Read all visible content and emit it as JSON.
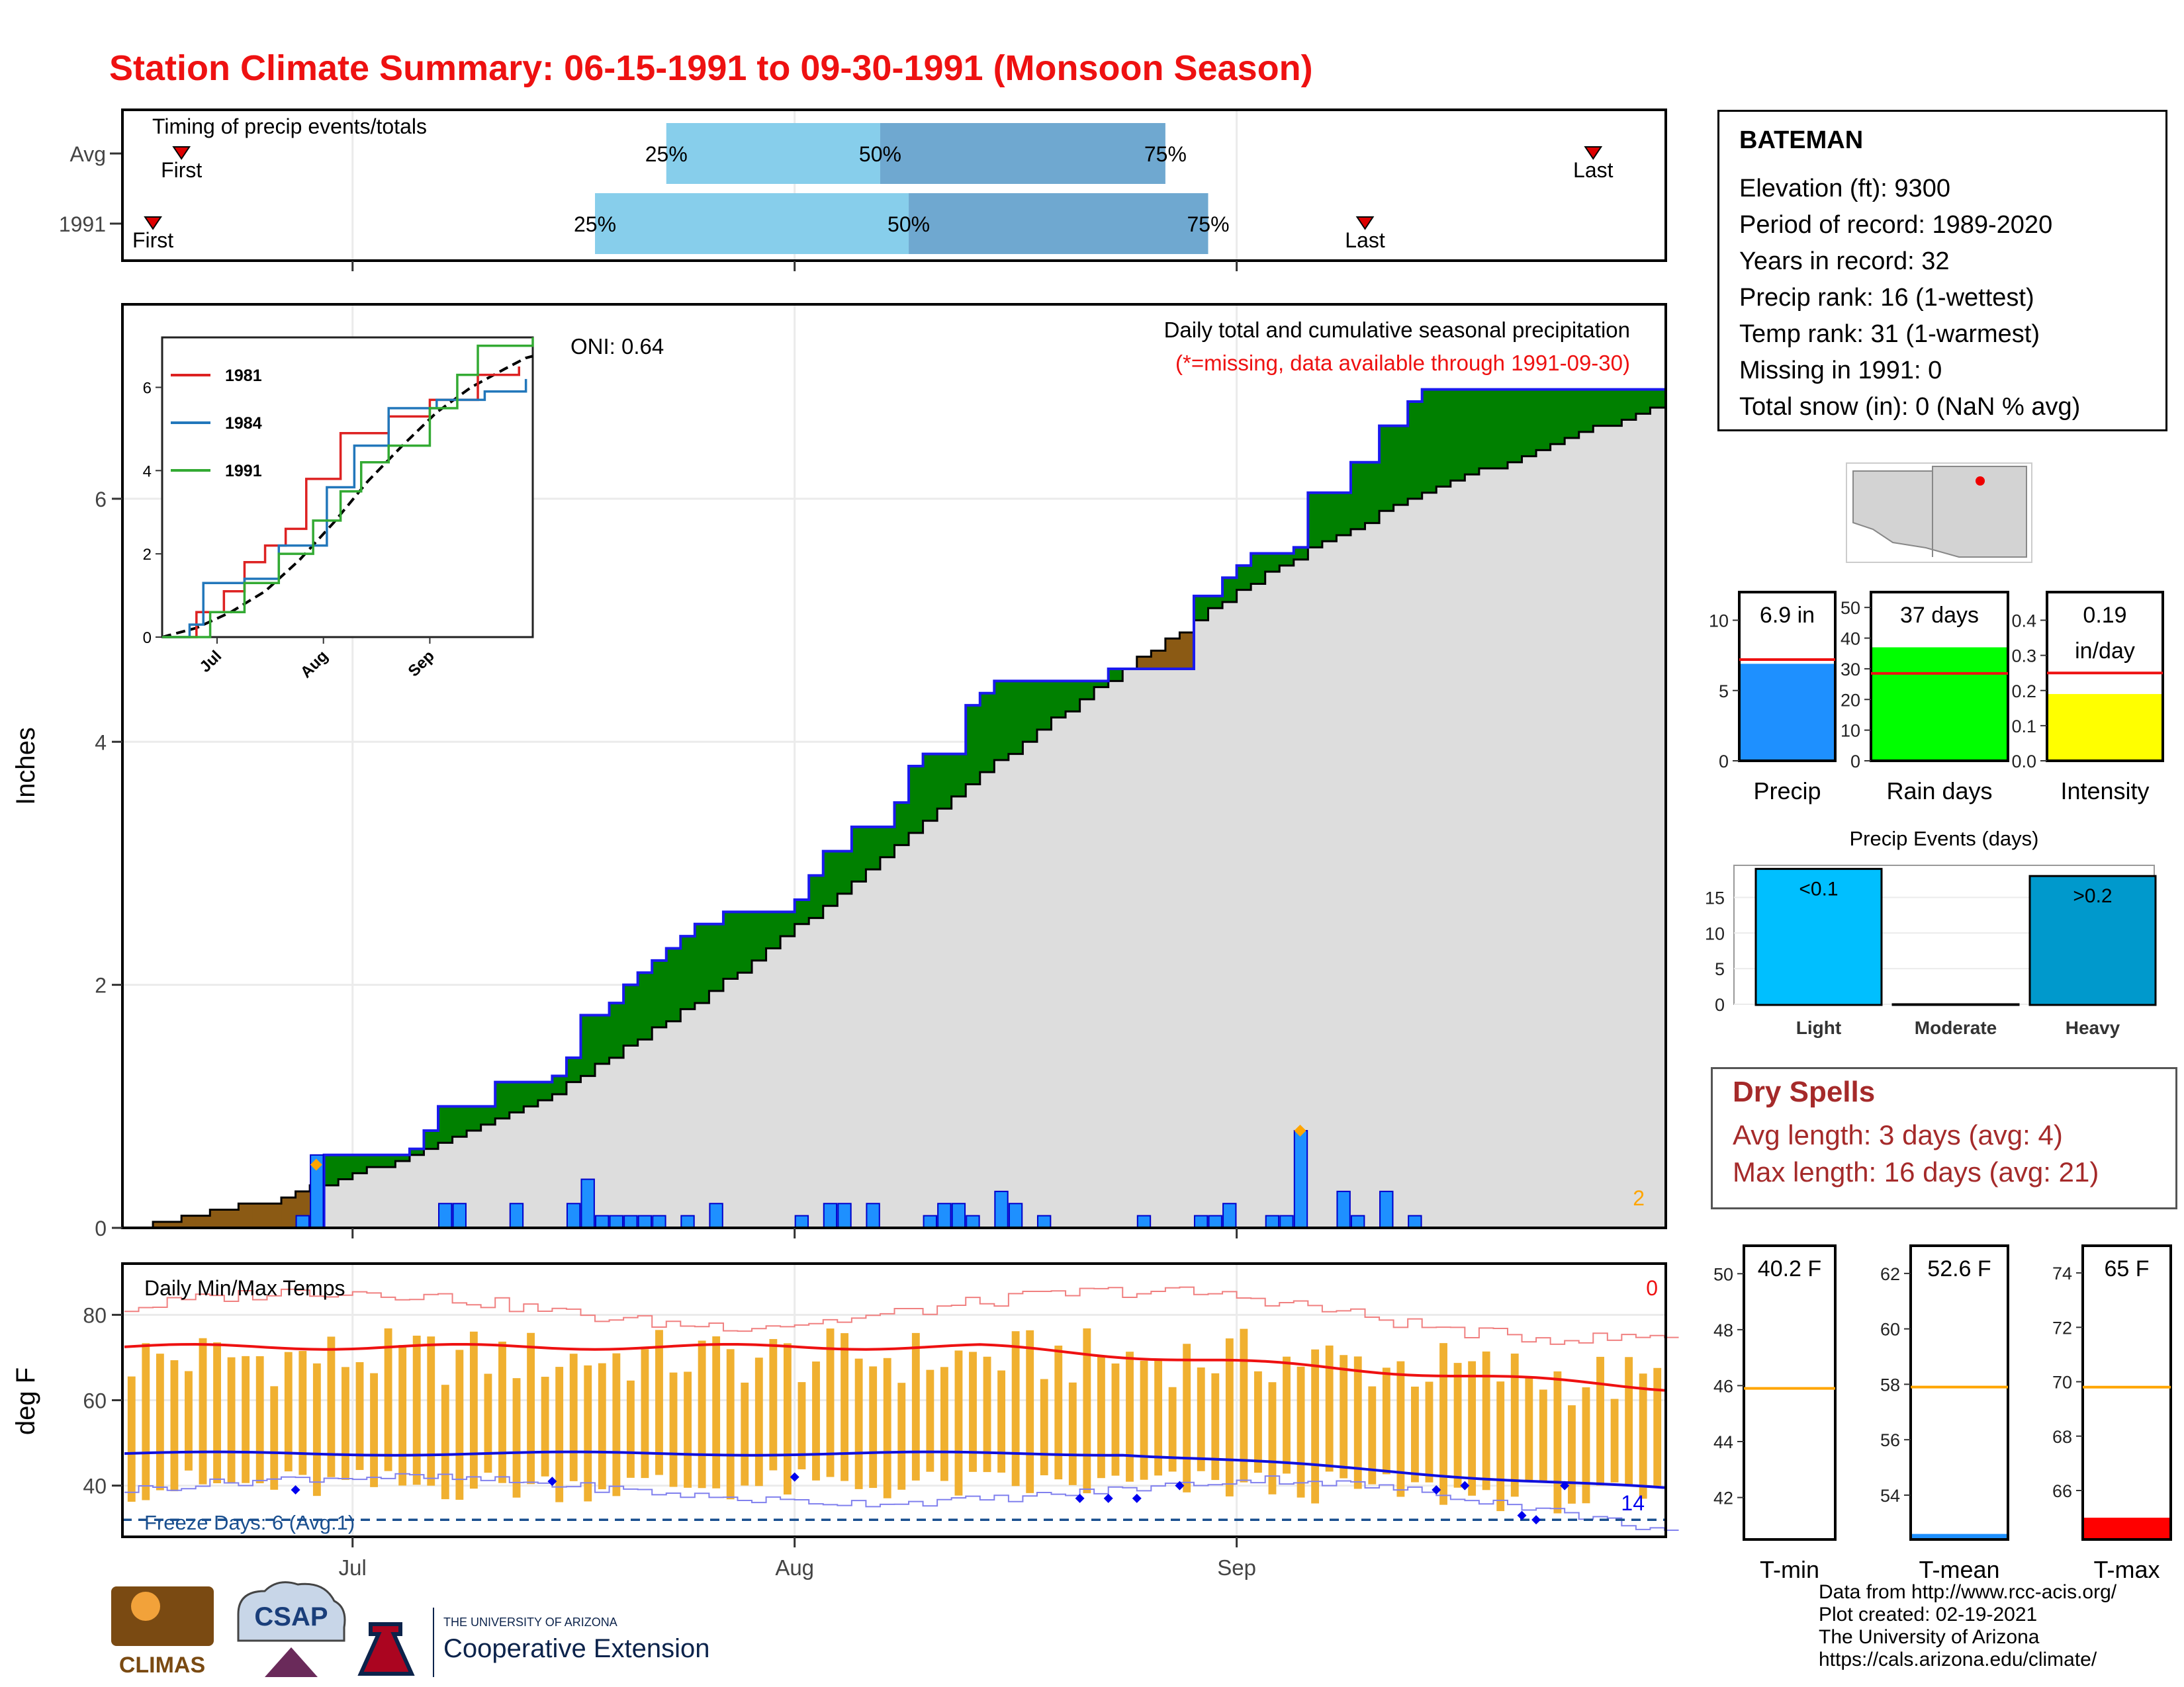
{
  "title": "Station Climate Summary: 06-15-1991 to 09-30-1991 (Monsoon Season)",
  "station": {
    "name": "BATEMAN",
    "lines": [
      "Elevation (ft): 9300",
      "Period of record: 1989-2020",
      "Years in record: 32",
      "Precip rank: 16 (1-wettest)",
      "Temp rank: 31 (1-warmest)",
      "Missing in 1991: 0",
      "Total snow (in): 0 (NaN % avg)"
    ]
  },
  "dry_spells": {
    "title": "Dry Spells",
    "avg": "Avg length: 3 days (avg: 4)",
    "max": "Max length: 16 days (avg: 21)"
  },
  "credits": [
    "Data from http://www.rcc-acis.org/",
    "Plot created: 02-19-2021",
    "The University of Arizona",
    "https://cals.arizona.edu/climate/"
  ],
  "colors": {
    "title": "#ee1111",
    "wet": "#008000",
    "dry": "#8b5a14",
    "cumAvg": "#dddddd",
    "daily": "#1e90ff",
    "tmax": "#ee1111",
    "tmin": "#1010dd",
    "range": "#f0b030"
  },
  "logos": {
    "climas": "CLIMAS",
    "csap": "CSAP",
    "uofa_top": "THE UNIVERSITY OF ARIZONA",
    "uofa_bottom": "Cooperative Extension"
  },
  "chart_data": [
    {
      "type": "bar",
      "name": "timing",
      "title": "Timing of precip events/totals",
      "rows": [
        "Avg",
        "1991"
      ],
      "quartile_labels": [
        "25%",
        "50%",
        "75%"
      ],
      "event_labels": [
        "First",
        "Last"
      ],
      "avg": {
        "first": "1991-06-19",
        "p25": "1991-07-23",
        "p50": "1991-08-07",
        "p75": "1991-08-27",
        "last": "1991-09-26"
      },
      "y1991": {
        "first": "1991-06-17",
        "p25": "1991-07-18",
        "p50": "1991-08-09",
        "p75": "1991-08-30",
        "last": "1991-09-10"
      },
      "x_ticks": [
        "Jul",
        "Aug",
        "Sep"
      ]
    },
    {
      "type": "area",
      "name": "cumulative",
      "title": "Daily total and cumulative seasonal precipitation",
      "subtitle": "(*=missing, data available through 1991-09-30)",
      "annotation": "ONI: 0.64",
      "corner_value": "2",
      "ylabel": "Inches",
      "ylim": [
        0,
        7.6
      ],
      "y_ticks": [
        0,
        2,
        4,
        6
      ],
      "x_range": [
        "1991-06-15",
        "1991-09-30"
      ],
      "x_ticks": [
        "Jul",
        "Aug",
        "Sep"
      ],
      "cumulative_1991": [
        [
          "1991-06-15",
          0
        ],
        [
          "1991-06-29",
          0.6
        ],
        [
          "1991-07-05",
          0.65
        ],
        [
          "1991-07-06",
          0.8
        ],
        [
          "1991-07-07",
          1.0
        ],
        [
          "1991-07-11",
          1.2
        ],
        [
          "1991-07-15",
          1.25
        ],
        [
          "1991-07-16",
          1.4
        ],
        [
          "1991-07-17",
          1.75
        ],
        [
          "1991-07-18",
          1.75
        ],
        [
          "1991-07-19",
          1.85
        ],
        [
          "1991-07-20",
          2.0
        ],
        [
          "1991-07-21",
          2.1
        ],
        [
          "1991-07-22",
          2.2
        ],
        [
          "1991-07-23",
          2.3
        ],
        [
          "1991-07-24",
          2.4
        ],
        [
          "1991-07-25",
          2.5
        ],
        [
          "1991-07-26",
          2.5
        ],
        [
          "1991-07-27",
          2.6
        ],
        [
          "1991-08-01",
          2.7
        ],
        [
          "1991-08-02",
          2.9
        ],
        [
          "1991-08-03",
          3.1
        ],
        [
          "1991-08-05",
          3.3
        ],
        [
          "1991-08-07",
          3.3
        ],
        [
          "1991-08-08",
          3.5
        ],
        [
          "1991-08-09",
          3.8
        ],
        [
          "1991-08-10",
          3.9
        ],
        [
          "1991-08-13",
          4.3
        ],
        [
          "1991-08-14",
          4.4
        ],
        [
          "1991-08-15",
          4.5
        ],
        [
          "1991-08-22",
          4.5
        ],
        [
          "1991-08-23",
          4.6
        ],
        [
          "1991-08-27",
          4.6
        ],
        [
          "1991-08-29",
          5.2
        ],
        [
          "1991-08-31",
          5.35
        ],
        [
          "1991-09-01",
          5.45
        ],
        [
          "1991-09-02",
          5.55
        ],
        [
          "1991-09-05",
          5.6
        ],
        [
          "1991-09-06",
          6.05
        ],
        [
          "1991-09-09",
          6.3
        ],
        [
          "1991-09-11",
          6.6
        ],
        [
          "1991-09-13",
          6.8
        ],
        [
          "1991-09-14",
          6.9
        ],
        [
          "1991-09-30",
          6.9
        ]
      ],
      "cumulative_avg": [
        [
          "1991-06-15",
          0
        ],
        [
          "1991-06-25",
          0.22
        ],
        [
          "1991-07-05",
          0.6
        ],
        [
          "1991-07-15",
          1.1
        ],
        [
          "1991-07-25",
          1.85
        ],
        [
          "1991-08-04",
          2.75
        ],
        [
          "1991-08-14",
          3.75
        ],
        [
          "1991-08-24",
          4.6
        ],
        [
          "1991-09-03",
          5.4
        ],
        [
          "1991-09-13",
          6.0
        ],
        [
          "1991-09-23",
          6.45
        ],
        [
          "1991-09-30",
          6.75
        ]
      ],
      "daily_bars": [
        [
          "1991-06-27",
          0.1
        ],
        [
          "1991-06-28",
          0.6
        ],
        [
          "1991-07-07",
          0.2
        ],
        [
          "1991-07-08",
          0.2
        ],
        [
          "1991-07-12",
          0.2
        ],
        [
          "1991-07-16",
          0.2
        ],
        [
          "1991-07-17",
          0.4
        ],
        [
          "1991-07-18",
          0.1
        ],
        [
          "1991-07-19",
          0.1
        ],
        [
          "1991-07-20",
          0.1
        ],
        [
          "1991-07-21",
          0.1
        ],
        [
          "1991-07-22",
          0.1
        ],
        [
          "1991-07-24",
          0.1
        ],
        [
          "1991-07-26",
          0.2
        ],
        [
          "1991-08-01",
          0.1
        ],
        [
          "1991-08-03",
          0.2
        ],
        [
          "1991-08-04",
          0.2
        ],
        [
          "1991-08-06",
          0.2
        ],
        [
          "1991-08-10",
          0.1
        ],
        [
          "1991-08-11",
          0.2
        ],
        [
          "1991-08-12",
          0.2
        ],
        [
          "1991-08-13",
          0.1
        ],
        [
          "1991-08-15",
          0.3
        ],
        [
          "1991-08-16",
          0.2
        ],
        [
          "1991-08-18",
          0.1
        ],
        [
          "1991-08-25",
          0.1
        ],
        [
          "1991-08-29",
          0.1
        ],
        [
          "1991-08-30",
          0.1
        ],
        [
          "1991-08-31",
          0.2
        ],
        [
          "1991-09-03",
          0.1
        ],
        [
          "1991-09-04",
          0.1
        ],
        [
          "1991-09-05",
          0.8
        ],
        [
          "1991-09-08",
          0.3
        ],
        [
          "1991-09-09",
          0.1
        ],
        [
          "1991-09-11",
          0.3
        ],
        [
          "1991-09-13",
          0.1
        ]
      ],
      "markers": [
        [
          "1991-06-28",
          0.52
        ],
        [
          "1991-09-05",
          0.8
        ]
      ],
      "inset": {
        "years": [
          "1981",
          "1984",
          "1991"
        ],
        "year_colors": [
          "#dd2222",
          "#2277bb",
          "#33aa33"
        ],
        "y_ticks": [
          0,
          2,
          4,
          6
        ],
        "x_ticks": [
          "Jul",
          "Aug",
          "Sep"
        ]
      }
    },
    {
      "type": "bar",
      "name": "totals",
      "panels": [
        {
          "label": "Precip",
          "value": 6.9,
          "value_text": "6.9 in",
          "avg": 7.2,
          "ylim": [
            0,
            12
          ],
          "ticks": [
            0,
            5,
            10
          ],
          "color": "#1e90ff"
        },
        {
          "label": "Rain days",
          "value": 37,
          "value_text": "37 days",
          "avg": 28.5,
          "ylim": [
            0,
            55
          ],
          "ticks": [
            0,
            10,
            20,
            30,
            40,
            50
          ],
          "color": "#00ff00"
        },
        {
          "label": "Intensity",
          "value": 0.19,
          "value_text": "0.19",
          "value_text2": "in/day",
          "avg": 0.25,
          "ylim": [
            0,
            0.48
          ],
          "ticks": [
            0.0,
            0.1,
            0.2,
            0.3,
            0.4
          ],
          "color": "#ffff00"
        }
      ]
    },
    {
      "type": "bar",
      "name": "precip_events",
      "title": "Precip Events (days)",
      "categories": [
        "Light",
        "Moderate",
        "Heavy"
      ],
      "values": [
        19,
        0,
        18
      ],
      "value_labels": [
        "<0.1",
        "",
        ">0.2"
      ],
      "colors": [
        "#00bfff",
        "#888888",
        "#0099cc"
      ],
      "ylim": [
        0,
        19.5
      ],
      "y_ticks": [
        0,
        5,
        10,
        15
      ]
    },
    {
      "type": "line",
      "name": "temps",
      "title": "Daily Min/Max Temps",
      "ylabel": "deg F",
      "ylim": [
        28,
        92
      ],
      "y_ticks": [
        40,
        60,
        80
      ],
      "freeze_text": "Freeze Days: 6 (Avg:1)",
      "corner_top": "0",
      "corner_bottom": "14",
      "freeze_line": 32,
      "x_ticks": [
        "Jul",
        "Aug",
        "Sep"
      ]
    },
    {
      "type": "bar",
      "name": "temp_summary",
      "panels": [
        {
          "label": "T-min",
          "value": 40.2,
          "value_text": "40.2 F",
          "avg": 45.9,
          "ylim": [
            40.5,
            51
          ],
          "ticks": [
            42,
            44,
            46,
            48,
            50
          ],
          "color": "#1e90ff"
        },
        {
          "label": "T-mean",
          "value": 52.6,
          "value_text": "52.6 F",
          "avg": 57.9,
          "ylim": [
            52.4,
            63
          ],
          "ticks": [
            54,
            56,
            58,
            60,
            62
          ],
          "color": "#1e90ff"
        },
        {
          "label": "T-max",
          "value": 65,
          "value_text": "65 F",
          "avg": 69.8,
          "ylim": [
            64.2,
            75
          ],
          "ticks": [
            66,
            68,
            70,
            72,
            74
          ],
          "color": "#ff0000"
        }
      ]
    }
  ]
}
